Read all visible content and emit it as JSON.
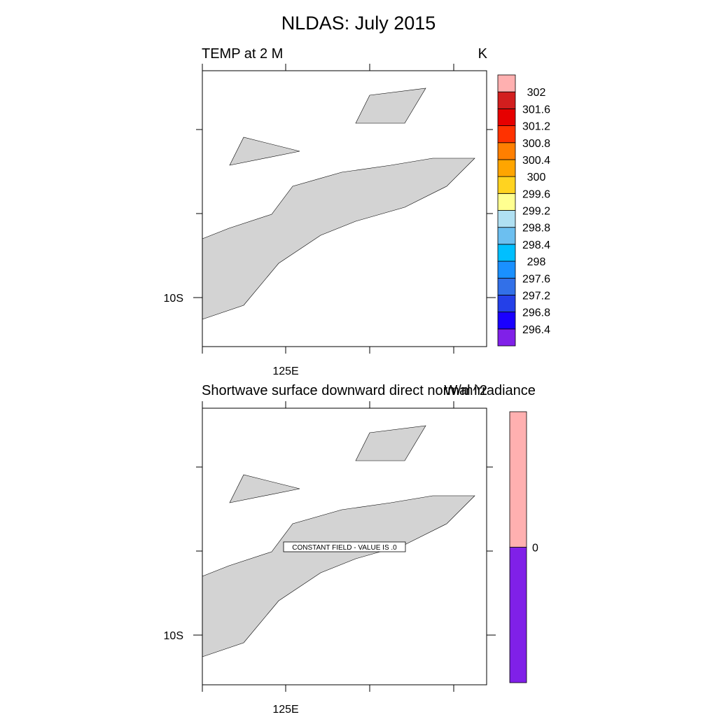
{
  "figure": {
    "title": "NLDAS: July 2015"
  },
  "chart_data": [
    {
      "type": "heatmap",
      "title": "TEMP at 2 M",
      "units": "K",
      "x_tick_label": "125E",
      "y_tick_label": "10S",
      "colorbar": {
        "levels": [
          "296.4",
          "296.8",
          "297.2",
          "297.6",
          "298",
          "298.4",
          "298.8",
          "299.2",
          "299.6",
          "300",
          "300.4",
          "300.8",
          "301.2",
          "301.6",
          "302"
        ],
        "colors": [
          "#8020e8",
          "#1a00ff",
          "#2440e8",
          "#3270e8",
          "#1a90ff",
          "#00bfff",
          "#6cbff0",
          "#b0e0f2",
          "#ffff90",
          "#ffd320",
          "#ffa500",
          "#ff7f00",
          "#ff3200",
          "#e60000",
          "#d21e1e",
          "#ffb0b0"
        ]
      }
    },
    {
      "type": "heatmap",
      "title": "Shortwave surface downward direct normal irradiance",
      "units": "W/m^2",
      "x_tick_label": "125E",
      "y_tick_label": "10S",
      "annotation": "CONSTANT FIELD - VALUE IS .0",
      "colorbar": {
        "levels": [
          "0"
        ],
        "colors": [
          "#8020e8",
          "#ffb0b0"
        ]
      }
    }
  ]
}
